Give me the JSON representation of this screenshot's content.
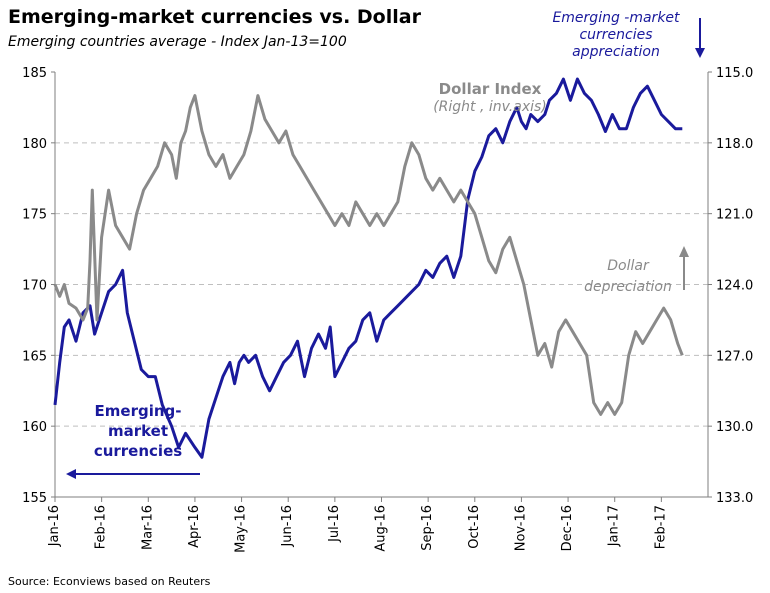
{
  "title": "Emerging-market currencies vs. Dollar",
  "subtitle": "Emerging countries average - Index Jan-13=100",
  "source": "Source: Econviews based on Reuters",
  "annotations": {
    "em_appreciation": [
      "Emerging -market",
      "currencies",
      "appreciation"
    ],
    "dollar_index": "Dollar Index",
    "dollar_index_sub": "(Right , inv.axis)",
    "dollar_depreciation": [
      "Dollar",
      "depreciation"
    ],
    "em_label": [
      "Emerging-",
      "market",
      "currencies"
    ]
  },
  "colors": {
    "em": "#1a1a9c",
    "dollar": "#8a8a8a",
    "grid": "#bfbfbf",
    "axis": "#7f7f7f"
  },
  "chart_data": {
    "type": "line",
    "title": "Emerging-market currencies vs. Dollar",
    "subtitle": "Emerging countries average - Index Jan-13=100",
    "categories": [
      "Jan-16",
      "Feb-16",
      "Mar-16",
      "Apr-16",
      "May-16",
      "Jun-16",
      "Jul-16",
      "Aug-16",
      "Sep-16",
      "Oct-16",
      "Nov-16",
      "Dec-16",
      "Jan-17",
      "Feb-17"
    ],
    "ylim_left": [
      155,
      185
    ],
    "yticks_left": [
      "155",
      "160",
      "165",
      "170",
      "175",
      "180",
      "185"
    ],
    "ylim_right_inverted": [
      115.0,
      133.0
    ],
    "yticks_right": [
      "115.0",
      "118.0",
      "121.0",
      "124.0",
      "127.0",
      "130.0",
      "133.0"
    ],
    "grid": "horizontal dashed",
    "series": [
      {
        "name": "Emerging-market currencies",
        "axis": "left",
        "x": [
          0,
          0.1,
          0.2,
          0.3,
          0.45,
          0.6,
          0.75,
          0.85,
          1.0,
          1.15,
          1.3,
          1.45,
          1.55,
          1.7,
          1.85,
          2.0,
          2.15,
          2.3,
          2.5,
          2.65,
          2.8,
          3.0,
          3.15,
          3.3,
          3.45,
          3.6,
          3.75,
          3.85,
          3.95,
          4.05,
          4.15,
          4.3,
          4.45,
          4.6,
          4.75,
          4.9,
          5.05,
          5.2,
          5.35,
          5.5,
          5.65,
          5.8,
          5.9,
          6.0,
          6.15,
          6.3,
          6.45,
          6.6,
          6.75,
          6.9,
          7.05,
          7.2,
          7.35,
          7.5,
          7.65,
          7.8,
          7.95,
          8.1,
          8.25,
          8.4,
          8.55,
          8.7,
          8.85,
          9.0,
          9.15,
          9.3,
          9.45,
          9.6,
          9.75,
          9.9,
          10.0,
          10.1,
          10.2,
          10.35,
          10.5,
          10.6,
          10.75,
          10.9,
          11.05,
          11.2,
          11.35,
          11.5,
          11.65,
          11.8,
          11.95,
          12.1,
          12.25,
          12.4,
          12.55,
          12.7,
          12.85,
          13.0,
          13.15,
          13.3,
          13.45
        ],
        "values": [
          161.5,
          164.5,
          167.0,
          167.5,
          166.0,
          168.0,
          168.5,
          166.5,
          168.0,
          169.5,
          170.0,
          171.0,
          168.0,
          166.0,
          164.0,
          163.5,
          163.5,
          161.5,
          160.0,
          158.5,
          159.5,
          158.5,
          157.8,
          160.5,
          162.0,
          163.5,
          164.5,
          163.0,
          164.5,
          165.0,
          164.5,
          165.0,
          163.5,
          162.5,
          163.5,
          164.5,
          165.0,
          166.0,
          163.5,
          165.5,
          166.5,
          165.5,
          167.0,
          163.5,
          164.5,
          165.5,
          166.0,
          167.5,
          168.0,
          166.0,
          167.5,
          168.0,
          168.5,
          169.0,
          169.5,
          170.0,
          171.0,
          170.5,
          171.5,
          172.0,
          170.5,
          172.0,
          176.0,
          178.0,
          179.0,
          180.5,
          181.0,
          180.0,
          181.5,
          182.5,
          181.5,
          181.0,
          182.0,
          181.5,
          182.0,
          183.0,
          183.5,
          184.5,
          183.0,
          184.5,
          183.5,
          183.0,
          182.0,
          180.8,
          182.0,
          181.0,
          181.0,
          182.5,
          183.5,
          184.0,
          183.0,
          182.0,
          181.5,
          181.0,
          181.0
        ]
      },
      {
        "name": "Dollar Index",
        "axis": "right_inverted",
        "x": [
          0,
          0.1,
          0.2,
          0.3,
          0.45,
          0.6,
          0.7,
          0.75,
          0.8,
          0.9,
          1.0,
          1.15,
          1.3,
          1.45,
          1.6,
          1.75,
          1.9,
          2.05,
          2.2,
          2.35,
          2.5,
          2.6,
          2.7,
          2.8,
          2.9,
          3.0,
          3.15,
          3.3,
          3.45,
          3.6,
          3.75,
          3.9,
          4.05,
          4.2,
          4.35,
          4.5,
          4.65,
          4.8,
          4.95,
          5.1,
          5.25,
          5.4,
          5.55,
          5.7,
          5.85,
          6.0,
          6.15,
          6.3,
          6.45,
          6.6,
          6.75,
          6.9,
          7.05,
          7.2,
          7.35,
          7.5,
          7.65,
          7.8,
          7.95,
          8.1,
          8.25,
          8.4,
          8.55,
          8.7,
          8.85,
          9.0,
          9.15,
          9.3,
          9.45,
          9.6,
          9.75,
          9.9,
          10.05,
          10.2,
          10.35,
          10.5,
          10.65,
          10.8,
          10.95,
          11.1,
          11.25,
          11.4,
          11.55,
          11.7,
          11.85,
          12.0,
          12.15,
          12.3,
          12.45,
          12.6,
          12.75,
          12.9,
          13.05,
          13.2,
          13.35,
          13.45
        ],
        "values": [
          124.0,
          124.5,
          124.0,
          124.8,
          125.0,
          125.5,
          125.0,
          123.0,
          120.0,
          125.5,
          122.0,
          120.0,
          121.5,
          122.0,
          122.5,
          121.0,
          120.0,
          119.5,
          119.0,
          118.0,
          118.5,
          119.5,
          118.0,
          117.5,
          116.5,
          116.0,
          117.5,
          118.5,
          119.0,
          118.5,
          119.5,
          119.0,
          118.5,
          117.5,
          116.0,
          117.0,
          117.5,
          118.0,
          117.5,
          118.5,
          119.0,
          119.5,
          120.0,
          120.5,
          121.0,
          121.5,
          121.0,
          121.5,
          120.5,
          121.0,
          121.5,
          121.0,
          121.5,
          121.0,
          120.5,
          119.0,
          118.0,
          118.5,
          119.5,
          120.0,
          119.5,
          120.0,
          120.5,
          120.0,
          120.5,
          121.0,
          122.0,
          123.0,
          123.5,
          122.5,
          122.0,
          123.0,
          124.0,
          125.5,
          127.0,
          126.5,
          127.5,
          126.0,
          125.5,
          126.0,
          126.5,
          127.0,
          129.0,
          129.5,
          129.0,
          129.5,
          129.0,
          127.0,
          126.0,
          126.5,
          126.0,
          125.5,
          125.0,
          125.5,
          126.5,
          127.0
        ]
      }
    ]
  }
}
